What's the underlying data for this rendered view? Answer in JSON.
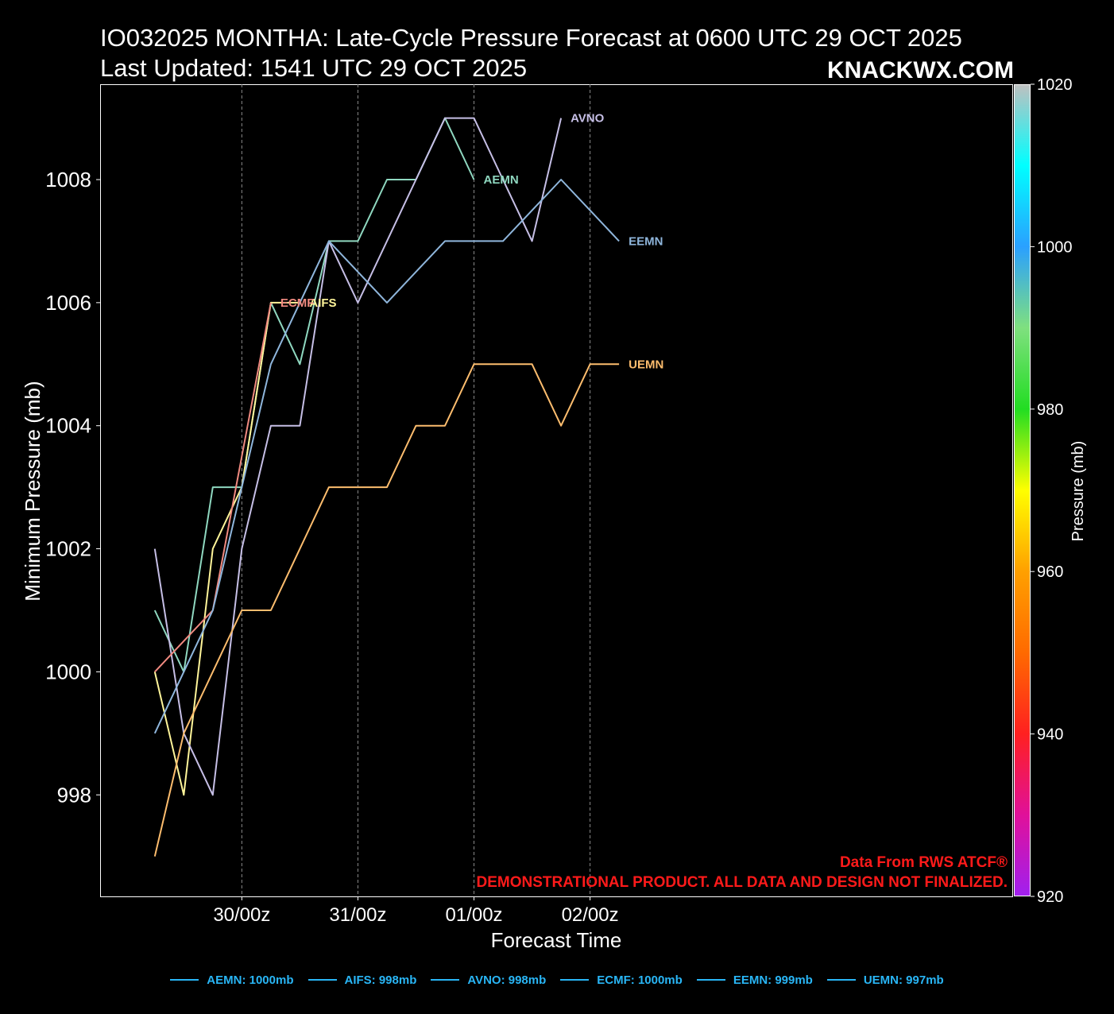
{
  "header": {
    "title": "IO032025 MONTHA: Late-Cycle Pressure Forecast at 0600 UTC 29 OCT 2025",
    "subtitle": "Last Updated: 1541 UTC 29 OCT 2025",
    "brand": "KNACKWX.COM"
  },
  "credits": {
    "source": "Data From RWS ATCF®",
    "disclaimer": "DEMONSTRATIONAL PRODUCT. ALL DATA AND DESIGN NOT FINALIZED."
  },
  "colorbar": {
    "label": "Pressure (mb)",
    "min": 920,
    "max": 1020,
    "ticks": [
      "920",
      "940",
      "960",
      "980",
      "1000",
      "1020"
    ],
    "stops": [
      {
        "value": 920,
        "color": "#a020f0"
      },
      {
        "value": 930,
        "color": "#e0109a"
      },
      {
        "value": 940,
        "color": "#ff2020"
      },
      {
        "value": 950,
        "color": "#ff6a00"
      },
      {
        "value": 960,
        "color": "#ffa000"
      },
      {
        "value": 970,
        "color": "#ffff00"
      },
      {
        "value": 980,
        "color": "#22dd22"
      },
      {
        "value": 990,
        "color": "#7fe07f"
      },
      {
        "value": 1000,
        "color": "#2aa0ff"
      },
      {
        "value": 1010,
        "color": "#00ffff"
      },
      {
        "value": 1020,
        "color": "#c0c0c0"
      }
    ]
  },
  "legend": {
    "swatch_color": "#29b6f6",
    "items": [
      "AEMN: 1000mb",
      "AIFS: 998mb",
      "AVNO: 998mb",
      "ECMF: 1000mb",
      "EEMN: 999mb",
      "UEMN: 997mb"
    ]
  },
  "chart_data": {
    "type": "line",
    "title": "IO032025 MONTHA: Late-Cycle Pressure Forecast at 0600 UTC 29 OCT 2025",
    "xlabel": "Forecast Time",
    "ylabel": "Minimum Pressure (mb)",
    "x_unit": "forecast hour (0 = 29/06Z)",
    "xlim": [
      -11.3,
      177.3
    ],
    "ylim": [
      996.35,
      1009.55
    ],
    "x_ticks": [
      {
        "hour": 18,
        "label": "30/00z"
      },
      {
        "hour": 42,
        "label": "31/00z"
      },
      {
        "hour": 66,
        "label": "01/00z"
      },
      {
        "hour": 90,
        "label": "02/00z"
      }
    ],
    "y_ticks": [
      998,
      1000,
      1002,
      1004,
      1006,
      1008
    ],
    "y_tick_labels": [
      "998",
      "1000",
      "1002",
      "1004",
      "1006",
      "1008"
    ],
    "series": [
      {
        "name": "AEMN",
        "color": "#8fd8c0",
        "x": [
          0,
          6,
          12,
          18,
          24,
          30,
          36,
          42,
          48,
          54,
          60,
          66
        ],
        "y": [
          1001,
          1000,
          1003,
          1003,
          1006,
          1005,
          1007,
          1007,
          1008,
          1008,
          1009,
          1008
        ]
      },
      {
        "name": "AIFS",
        "color": "#fff59a",
        "x": [
          0,
          6,
          12,
          18,
          24,
          30
        ],
        "y": [
          1000,
          998,
          1002,
          1003,
          1006,
          1006
        ]
      },
      {
        "name": "AVNO",
        "color": "#c6bfe6",
        "x": [
          0,
          6,
          12,
          18,
          24,
          30,
          36,
          42,
          48,
          54,
          60,
          66,
          72,
          78,
          84
        ],
        "y": [
          1002,
          999,
          998,
          1002,
          1004,
          1004,
          1007,
          1006,
          1007,
          1008,
          1009,
          1009,
          1008,
          1007,
          1009
        ]
      },
      {
        "name": "ECMF",
        "color": "#f08a80",
        "x": [
          0,
          6,
          12,
          18,
          24
        ],
        "y": [
          1000,
          1000.5,
          1001,
          1003.5,
          1006
        ]
      },
      {
        "name": "EEMN",
        "color": "#8fb6dc",
        "x": [
          0,
          6,
          12,
          18,
          24,
          30,
          36,
          42,
          48,
          54,
          60,
          66,
          72,
          78,
          84,
          90,
          96
        ],
        "y": [
          999,
          1000,
          1001,
          1003,
          1005,
          1006,
          1007,
          1006.5,
          1006,
          1006.5,
          1007,
          1007,
          1007,
          1007.5,
          1008,
          1007.5,
          1007
        ]
      },
      {
        "name": "UEMN",
        "color": "#fdbd6e",
        "x": [
          0,
          6,
          12,
          18,
          24,
          30,
          36,
          42,
          48,
          54,
          60,
          66,
          72,
          78,
          84,
          90,
          96
        ],
        "y": [
          997,
          999,
          1000,
          1001,
          1001,
          1002,
          1003,
          1003,
          1003,
          1004,
          1004,
          1005,
          1005,
          1005,
          1004,
          1005,
          1005
        ]
      }
    ]
  }
}
